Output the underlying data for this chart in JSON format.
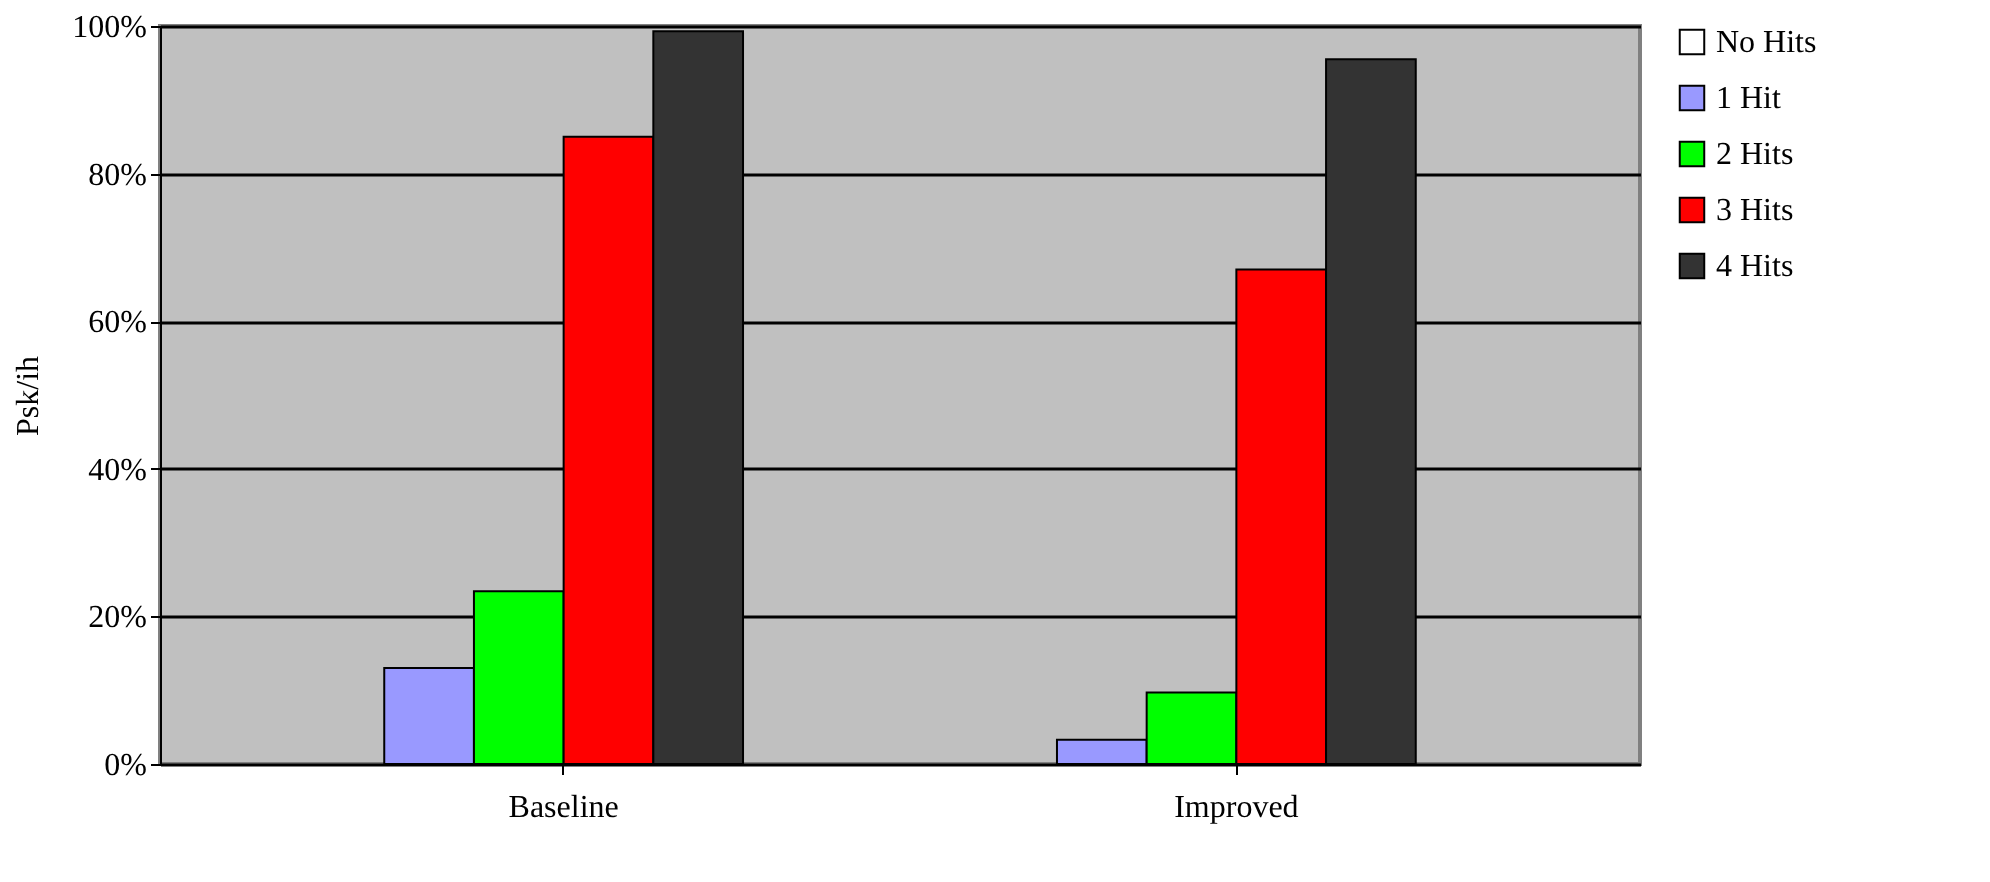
{
  "chart_data": {
    "type": "bar",
    "ylabel": "Psk/ih",
    "categories": [
      "Baseline",
      "Improved"
    ],
    "series": [
      {
        "name": "No Hits",
        "color": "#ffffff",
        "values": [
          null,
          null
        ]
      },
      {
        "name": "1 Hit",
        "color": "#9999ff",
        "values": [
          13,
          3.3
        ]
      },
      {
        "name": "2 Hits",
        "color": "#00ff00",
        "values": [
          23.4,
          9.7
        ]
      },
      {
        "name": "3 Hits",
        "color": "#ff0000",
        "values": [
          85,
          67
        ]
      },
      {
        "name": "4 Hits",
        "color": "#333333",
        "values": [
          99.3,
          95.5
        ]
      }
    ],
    "ylim": [
      0,
      100
    ],
    "yticks": [
      {
        "value": 0,
        "label": "0%"
      },
      {
        "value": 20,
        "label": "20%"
      },
      {
        "value": 40,
        "label": "40%"
      },
      {
        "value": 60,
        "label": "60%"
      },
      {
        "value": 80,
        "label": "80%"
      },
      {
        "value": 100,
        "label": "100%"
      }
    ],
    "grid": "y",
    "legend": "right"
  }
}
